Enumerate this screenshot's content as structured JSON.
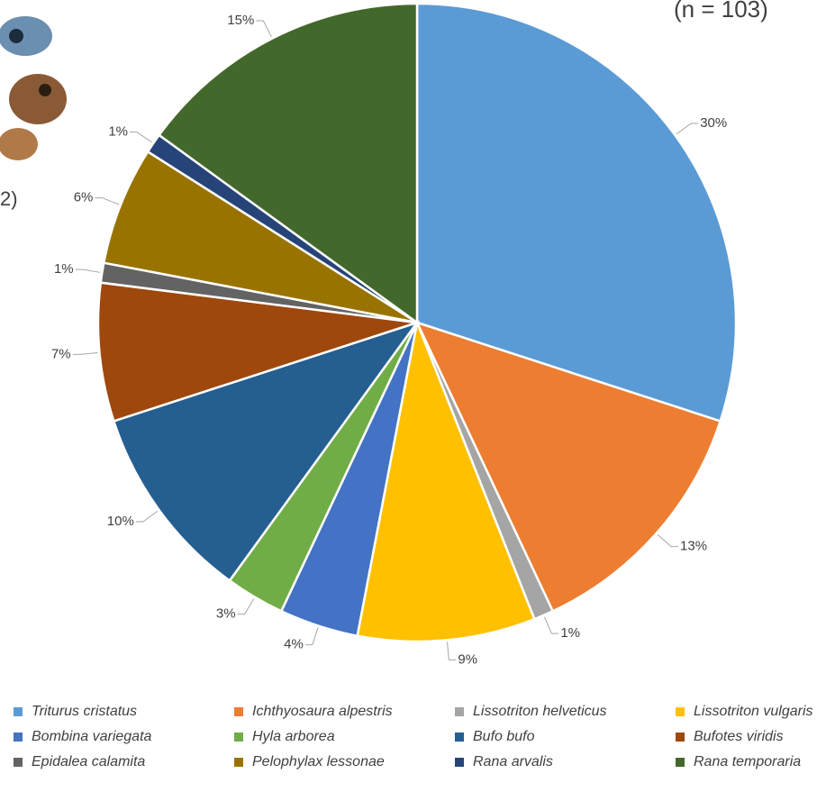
{
  "chart_data": {
    "type": "pie",
    "subtitle": "(n = 103)",
    "side_note": "2)",
    "categories": [
      "Triturus cristatus",
      "Ichthyosaura alpestris",
      "Lissotriton helveticus",
      "Lissotriton vulgaris",
      "Bombina variegata",
      "Hyla arborea",
      "Bufo bufo",
      "Bufotes viridis",
      "Epidalea calamita",
      "Pelophylax lessonae",
      "Rana arvalis",
      "Rana temporaria"
    ],
    "values": [
      30,
      13,
      1,
      9,
      4,
      3,
      10,
      7,
      1,
      6,
      1,
      15
    ],
    "value_labels": [
      "30%",
      "13%",
      "1%",
      "9%",
      "4%",
      "3%",
      "10%",
      "7%",
      "1%",
      "6%",
      "1%",
      "15%"
    ],
    "colors": [
      "#5b9bd5",
      "#ed7d31",
      "#a5a5a5",
      "#ffc000",
      "#4472c4",
      "#70ad47",
      "#255e91",
      "#9e480e",
      "#636363",
      "#997300",
      "#264478",
      "#43682b"
    ],
    "legend": "bottom"
  }
}
